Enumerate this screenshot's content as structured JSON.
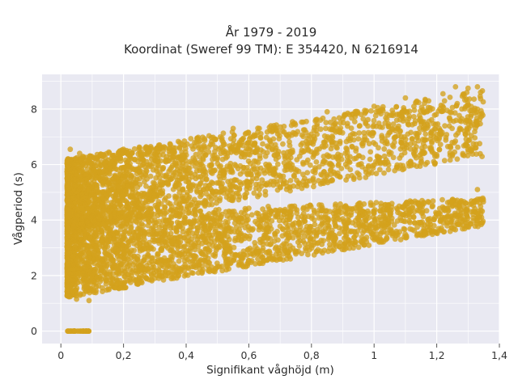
{
  "chart_data": {
    "type": "scatter",
    "title_line1": "År 1979 - 2019",
    "title_line2": "Koordinat (Sweref 99 TM): E 354420, N 6216914",
    "xlabel": "Signifikant våghöjd (m)",
    "ylabel": "Vågperiod (s)",
    "xlim": [
      -0.06,
      1.4
    ],
    "ylim": [
      -0.45,
      9.25
    ],
    "x_ticks": [
      0,
      0.2,
      0.4,
      0.6,
      0.8,
      1,
      1.2,
      1.4
    ],
    "x_tick_labels": [
      "0",
      "0,2",
      "0,4",
      "0,6",
      "0,8",
      "1",
      "1,2",
      "1,4"
    ],
    "y_ticks": [
      0,
      2,
      4,
      6,
      8
    ],
    "y_tick_labels": [
      "0",
      "2",
      "4",
      "6",
      "8"
    ],
    "grid": true,
    "marker_color": "#D4A21C",
    "plot_bg_color": "#E9E9F2",
    "clusters": [
      {
        "name": "upper-branch",
        "x_range": [
          0.02,
          1.35
        ],
        "y_at_x0": [
          3.6,
          6.2
        ],
        "y_at_xmax": [
          6.3,
          8.7
        ]
      },
      {
        "name": "lower-branch",
        "x_range": [
          0.02,
          1.35
        ],
        "y_at_x0": [
          1.2,
          4.2
        ],
        "y_at_xmax": [
          3.8,
          4.8
        ]
      },
      {
        "name": "zero-period",
        "x_range": [
          0.02,
          0.09
        ],
        "y": 0
      }
    ],
    "sample_points": [
      {
        "x": 0.03,
        "y": 6.55
      },
      {
        "x": 0.06,
        "y": 6.4
      },
      {
        "x": 0.2,
        "y": 6.55
      },
      {
        "x": 0.55,
        "y": 7.3
      },
      {
        "x": 0.85,
        "y": 7.9
      },
      {
        "x": 1.0,
        "y": 8.1
      },
      {
        "x": 1.1,
        "y": 8.4
      },
      {
        "x": 1.22,
        "y": 8.55
      },
      {
        "x": 1.26,
        "y": 8.8
      },
      {
        "x": 1.3,
        "y": 8.75
      },
      {
        "x": 1.33,
        "y": 8.8
      },
      {
        "x": 1.34,
        "y": 8.6
      },
      {
        "x": 1.28,
        "y": 8.0
      },
      {
        "x": 1.31,
        "y": 7.8
      },
      {
        "x": 1.2,
        "y": 6.3
      },
      {
        "x": 1.33,
        "y": 5.1
      },
      {
        "x": 1.33,
        "y": 4.75
      },
      {
        "x": 1.25,
        "y": 4.65
      },
      {
        "x": 1.15,
        "y": 4.55
      },
      {
        "x": 1.03,
        "y": 4.4
      },
      {
        "x": 0.05,
        "y": 1.15
      },
      {
        "x": 0.09,
        "y": 1.1
      },
      {
        "x": 0.02,
        "y": 1.6
      },
      {
        "x": 0.02,
        "y": 4.2
      }
    ]
  }
}
